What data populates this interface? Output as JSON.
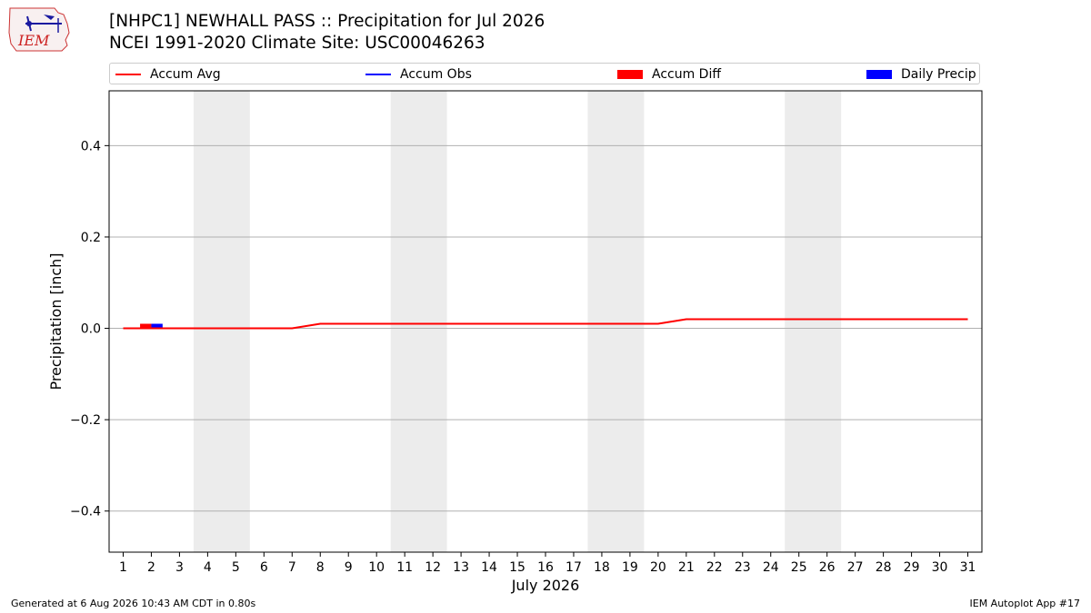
{
  "header": {
    "logo_text": "IEM",
    "title_line1": "[NHPC1] NEWHALL PASS :: Precipitation for Jul 2026",
    "title_line2": "NCEI 1991-2020 Climate Site: USC00046263"
  },
  "legend": {
    "placement": "top",
    "items": [
      {
        "label": "Accum Avg",
        "kind": "line",
        "color": "#ff0000"
      },
      {
        "label": "Accum Obs",
        "kind": "line",
        "color": "#0000ff"
      },
      {
        "label": "Accum Diff",
        "kind": "patch",
        "color": "#ff0000"
      },
      {
        "label": "Daily Precip",
        "kind": "patch",
        "color": "#0000ff"
      }
    ]
  },
  "chart_data": {
    "type": "line",
    "xlabel": "July 2026",
    "ylabel": "Precipitation [inch]",
    "xlim": [
      0.5,
      31.5
    ],
    "ylim": [
      -0.49,
      0.52
    ],
    "x_ticks": [
      1,
      2,
      3,
      4,
      5,
      6,
      7,
      8,
      9,
      10,
      11,
      12,
      13,
      14,
      15,
      16,
      17,
      18,
      19,
      20,
      21,
      22,
      23,
      24,
      25,
      26,
      27,
      28,
      29,
      30,
      31
    ],
    "y_ticks": [
      -0.4,
      -0.2,
      0.0,
      0.2,
      0.4
    ],
    "y_tick_labels": [
      "−0.4",
      "−0.2",
      "0.0",
      "0.2",
      "0.4"
    ],
    "grid": "y",
    "weekend_shading": [
      [
        3.5,
        5.5
      ],
      [
        10.5,
        12.5
      ],
      [
        17.5,
        19.5
      ],
      [
        24.5,
        26.5
      ]
    ],
    "series": [
      {
        "name": "Accum Avg",
        "type": "line",
        "color": "#ff0000",
        "x": [
          1,
          2,
          3,
          4,
          5,
          6,
          7,
          8,
          9,
          10,
          11,
          12,
          13,
          14,
          15,
          16,
          17,
          18,
          19,
          20,
          21,
          22,
          23,
          24,
          25,
          26,
          27,
          28,
          29,
          30,
          31
        ],
        "values": [
          0.0,
          0.0,
          0.0,
          0.0,
          0.0,
          0.0,
          0.0,
          0.01,
          0.01,
          0.01,
          0.01,
          0.01,
          0.01,
          0.01,
          0.01,
          0.01,
          0.01,
          0.01,
          0.01,
          0.01,
          0.02,
          0.02,
          0.02,
          0.02,
          0.02,
          0.02,
          0.02,
          0.02,
          0.02,
          0.02,
          0.02
        ]
      },
      {
        "name": "Accum Diff",
        "type": "bar",
        "color": "#ff0000",
        "x": [
          2
        ],
        "values": [
          0.01
        ]
      },
      {
        "name": "Daily Precip",
        "type": "bar",
        "color": "#0000ff",
        "x": [
          2
        ],
        "values": [
          0.01
        ]
      }
    ]
  },
  "footer": {
    "left": "Generated at 6 Aug 2026 10:43 AM CDT in 0.80s",
    "right": "IEM Autoplot App #17"
  }
}
